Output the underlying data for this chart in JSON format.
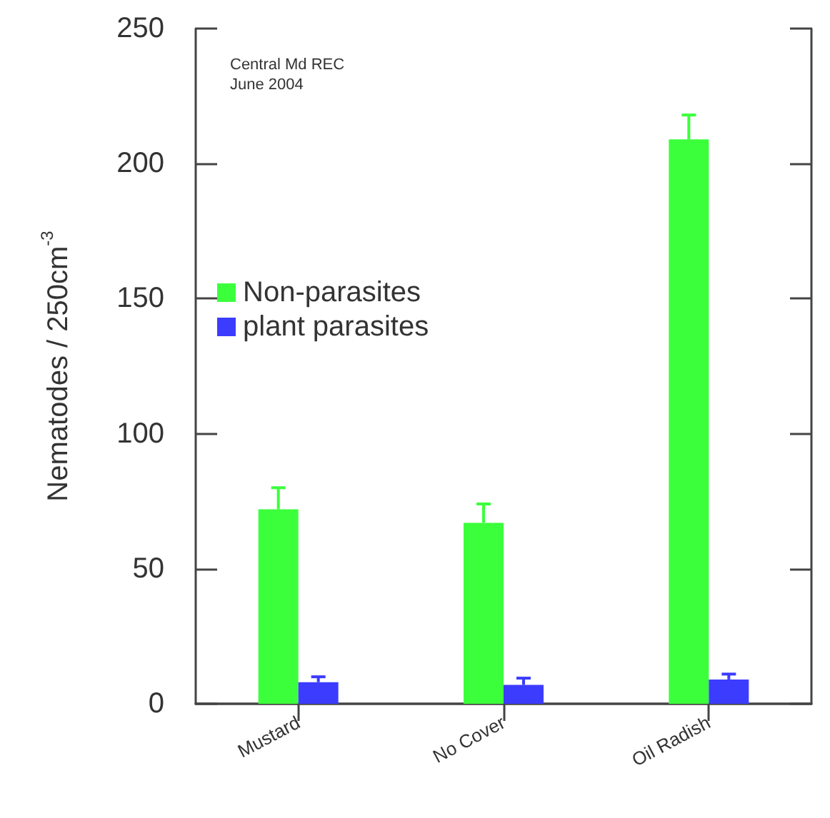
{
  "chart_data": {
    "type": "bar",
    "ylabel": "Nematodes / 250cm$^{-3}$",
    "categories": [
      "Mustard",
      "No Cover",
      "Oil Radish"
    ],
    "series": [
      {
        "name": "Non-parasites",
        "color": "#3cff3c",
        "values": [
          72,
          67,
          209
        ],
        "errors": [
          [
            72,
            80
          ],
          [
            67,
            74
          ],
          [
            209,
            218
          ]
        ]
      },
      {
        "name": "plant parasites",
        "color": "#3c3cff",
        "values": [
          8,
          7,
          9
        ],
        "errors": [
          [
            8,
            10
          ],
          [
            7,
            9.5
          ],
          [
            9,
            11
          ]
        ]
      }
    ],
    "ylim": [
      0,
      250
    ],
    "yticks": [
      0,
      50,
      100,
      150,
      200,
      250
    ],
    "grid": false,
    "legend": "left",
    "annotations": [
      "Central Md REC",
      "June 2004"
    ]
  }
}
